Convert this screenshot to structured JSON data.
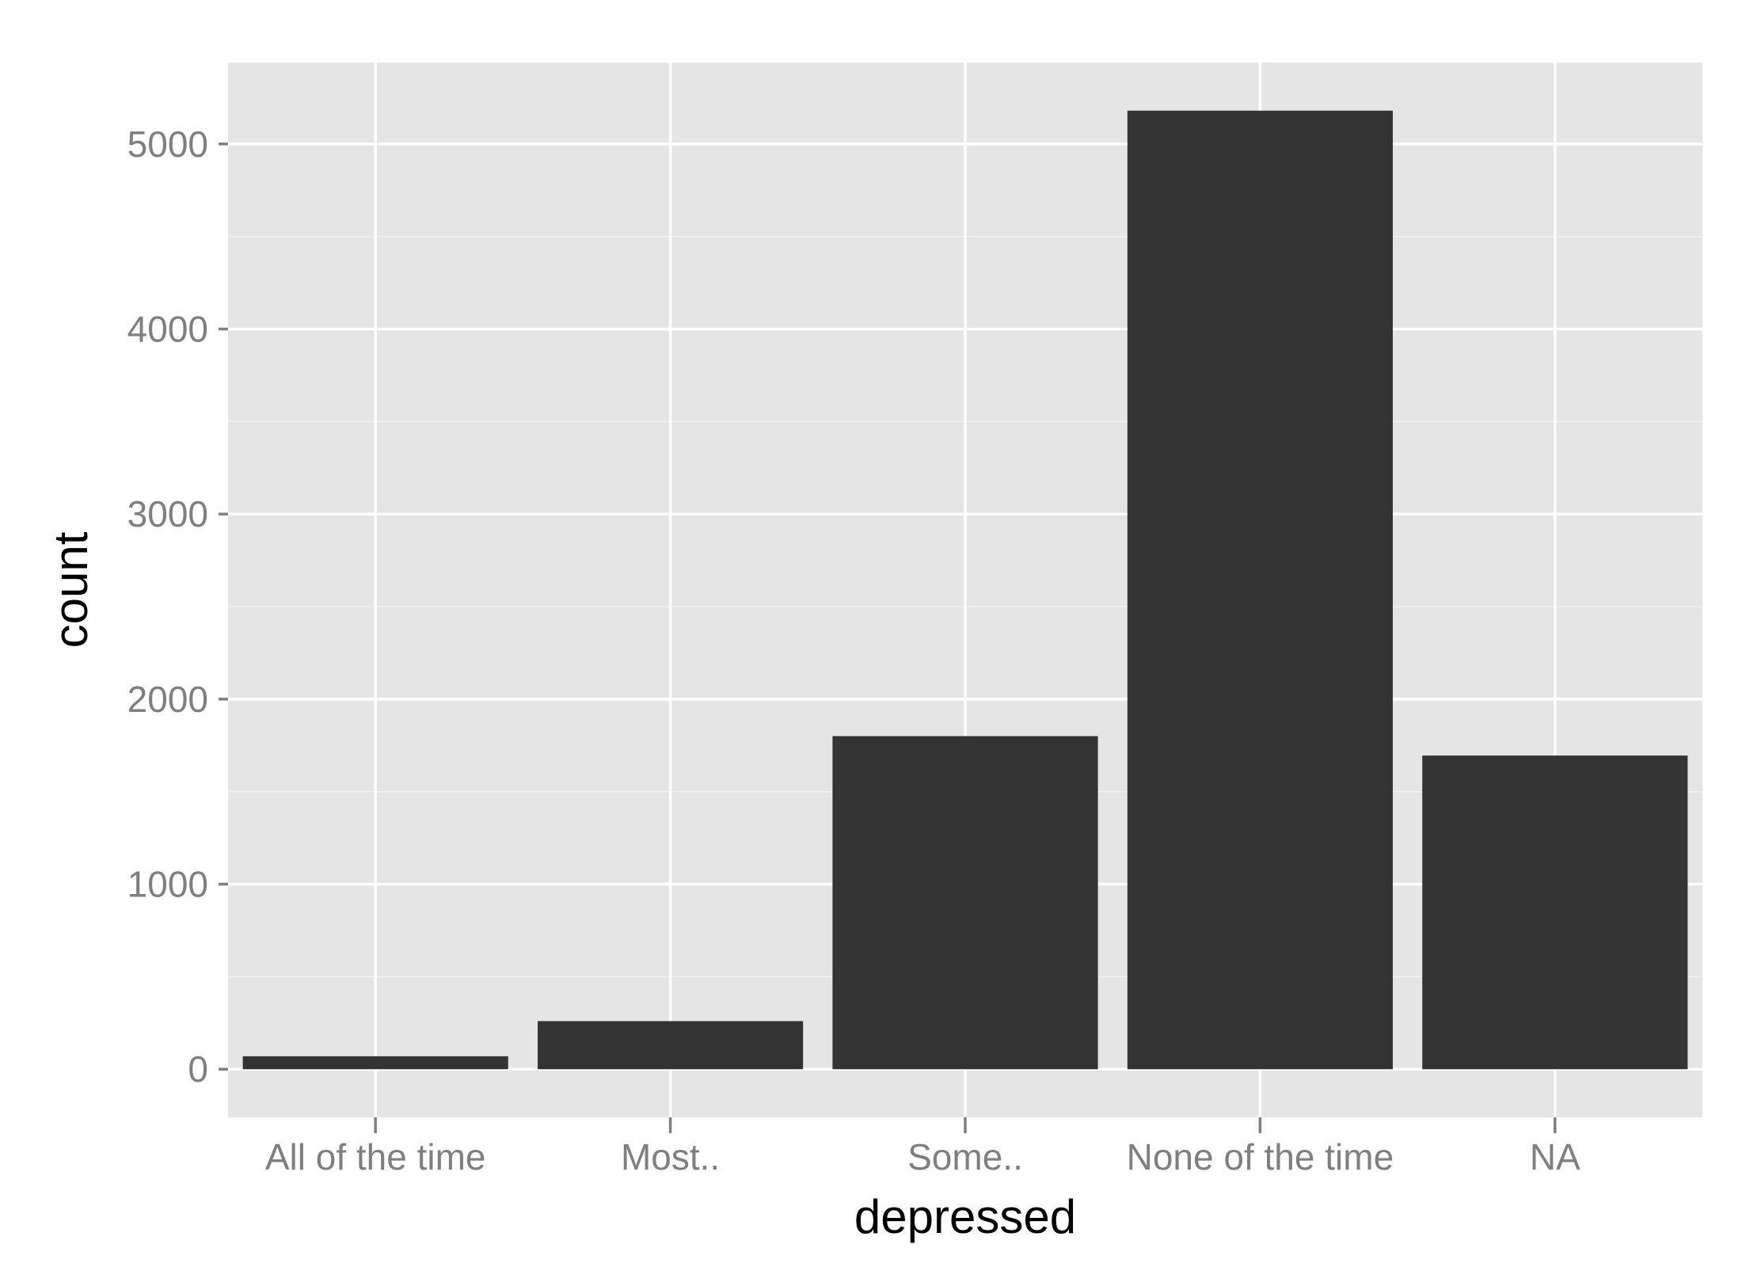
{
  "chart_data": {
    "type": "bar",
    "categories": [
      "All of the time",
      "Most..",
      "Some..",
      "None of the time",
      "NA"
    ],
    "values": [
      70,
      260,
      1800,
      5180,
      1695
    ],
    "xlabel": "depressed",
    "ylabel": "count",
    "ylim": [
      -260,
      5440
    ],
    "yticks": [
      0,
      1000,
      2000,
      3000,
      4000,
      5000
    ],
    "yticks_minor": [
      500,
      1500,
      2500,
      3500,
      4500
    ],
    "grid": true,
    "legend": "none",
    "colors": {
      "panel": "#e5e5e5",
      "bar": "#333333",
      "grid_major": "#ffffff",
      "grid_minor": "#f2f2f2",
      "tick_label": "#7f7f7f",
      "tick_mark": "#7f7f7f",
      "axis_title": "#000000",
      "background": "#ffffff"
    }
  }
}
